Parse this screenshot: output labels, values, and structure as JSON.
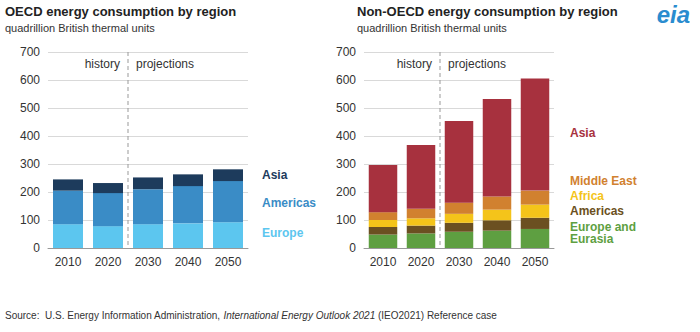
{
  "chart_data": [
    {
      "type": "bar",
      "title": "OECD energy consumption by region",
      "subtitle": "quadrillion British thermal units",
      "categories": [
        "2010",
        "2020",
        "2030",
        "2040",
        "2050"
      ],
      "series": [
        {
          "name": "Europe",
          "color": "#5cc6ef",
          "values": [
            85,
            78,
            85,
            88,
            92
          ]
        },
        {
          "name": "Americas",
          "color": "#3a8cc6",
          "values": [
            120,
            118,
            125,
            133,
            147
          ]
        },
        {
          "name": "Asia",
          "color": "#1d3b5c",
          "values": [
            40,
            36,
            42,
            42,
            42
          ]
        }
      ],
      "annotations": [
        {
          "text": "history",
          "x": "2020"
        },
        {
          "text": "projections",
          "x": "2030"
        }
      ],
      "ylim": [
        0,
        700
      ],
      "yticks": [
        0,
        100,
        200,
        300,
        400,
        500,
        600,
        700
      ],
      "stacked": true,
      "grid": true,
      "legend": "right"
    },
    {
      "type": "bar",
      "title": "Non-OECD energy consumption by region",
      "subtitle": "quadrillion British thermal units",
      "categories": [
        "2010",
        "2020",
        "2030",
        "2040",
        "2050"
      ],
      "series": [
        {
          "name": "Europe and Eurasia",
          "color": "#5e9f41",
          "values": [
            48,
            52,
            58,
            62,
            68
          ]
        },
        {
          "name": "Americas",
          "color": "#6b5021",
          "values": [
            27,
            28,
            32,
            37,
            40
          ]
        },
        {
          "name": "Africa",
          "color": "#f4c41a",
          "values": [
            25,
            26,
            32,
            38,
            47
          ]
        },
        {
          "name": "Middle East",
          "color": "#d1812f",
          "values": [
            28,
            34,
            40,
            47,
            50
          ]
        },
        {
          "name": "Asia",
          "color": "#a7313e",
          "values": [
            168,
            228,
            292,
            348,
            400
          ]
        }
      ],
      "annotations": [
        {
          "text": "history",
          "x": "2020"
        },
        {
          "text": "projections",
          "x": "2030"
        }
      ],
      "ylim": [
        0,
        700
      ],
      "yticks": [
        0,
        100,
        200,
        300,
        400,
        500,
        600,
        700
      ],
      "stacked": true,
      "grid": true,
      "legend": "right"
    }
  ],
  "logo": "eia",
  "source": [
    "Source:  U.S. Energy Information Administration, ",
    "International Energy Outlook 2021",
    " (IEO2021) Reference case"
  ]
}
